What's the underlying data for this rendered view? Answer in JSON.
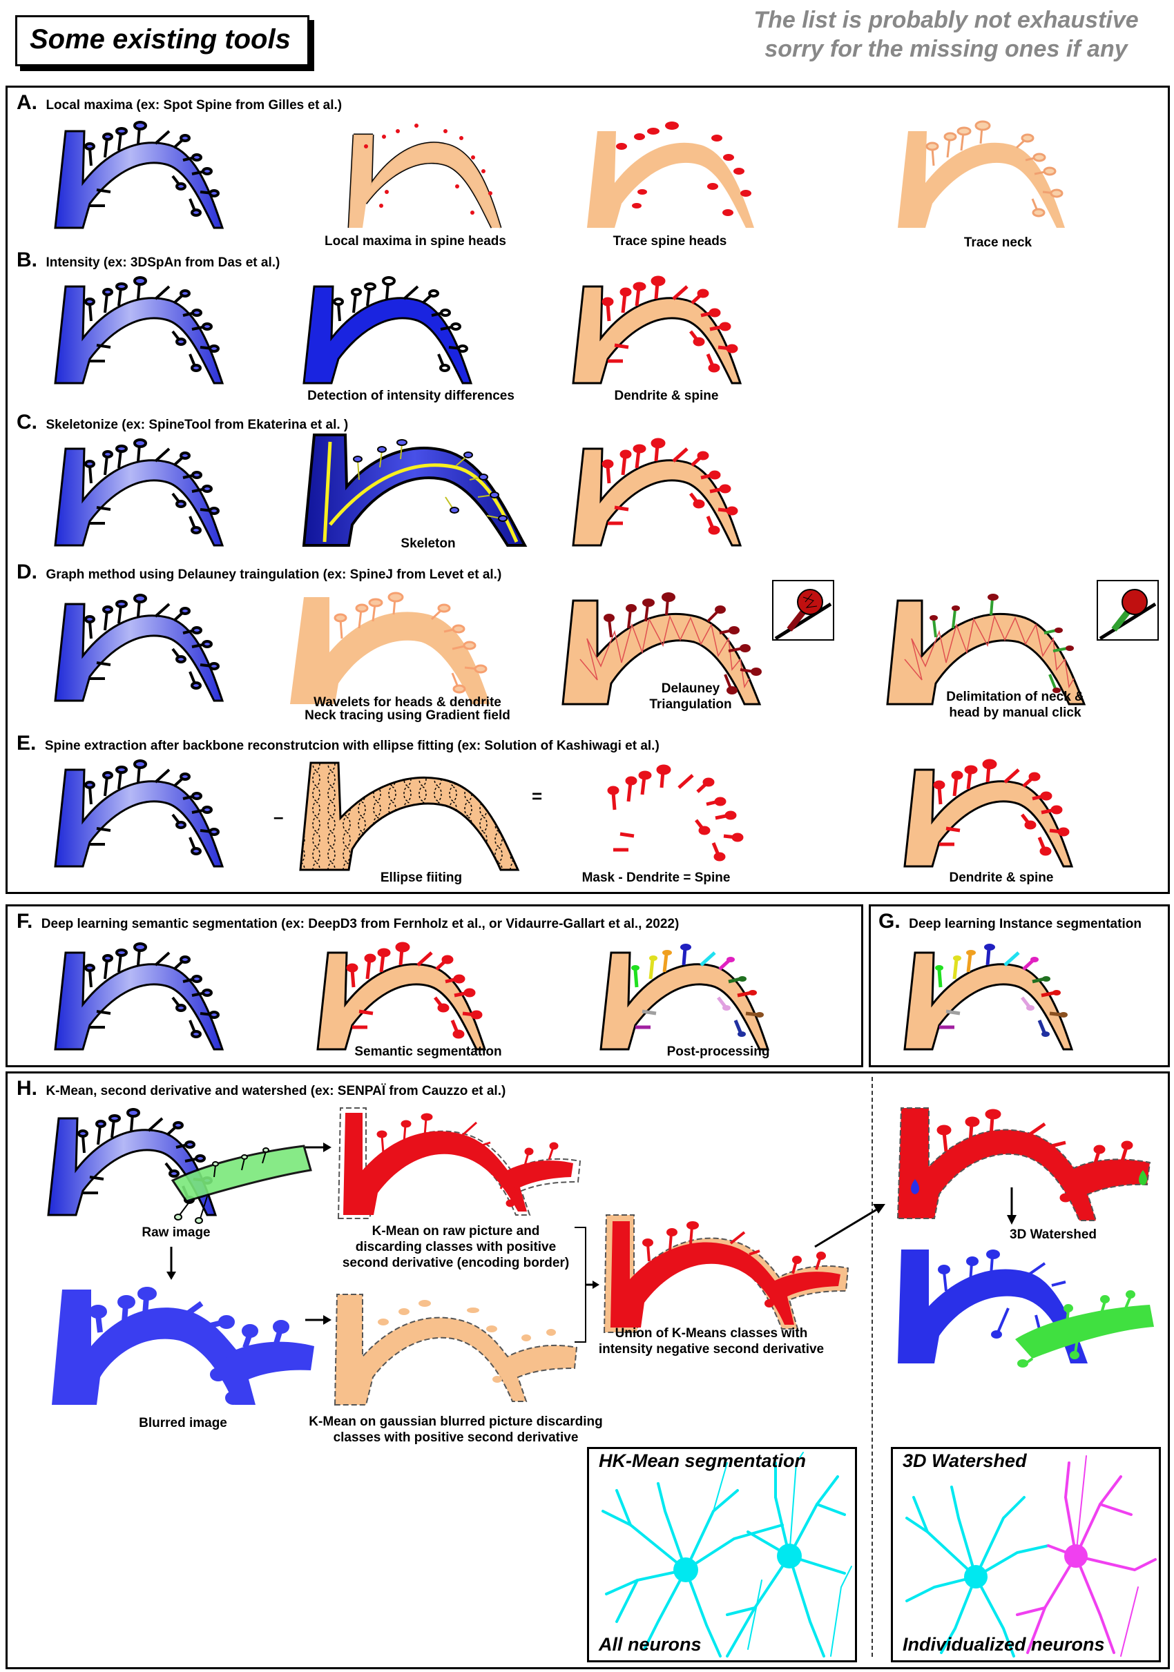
{
  "header": {
    "title": "Some existing tools",
    "disclaimer_line1": "The list is probably not exhaustive",
    "disclaimer_line2": "sorry for the missing ones if any"
  },
  "colors": {
    "raw_blue": "#5a5ef0",
    "deep_blue": "#1a24e0",
    "peach": "#f7c08c",
    "red": "#e8101a",
    "dark_red": "#8b0a12",
    "green": "#50e050",
    "cyan": "#00f0f0",
    "magenta": "#f050f0",
    "yellow": "#f8f020"
  },
  "sections": {
    "A": {
      "letter": "A.",
      "title": "Local maxima (ex:  Spot Spine  from Gilles et al.)",
      "captions": [
        "Local maxima in spine heads",
        "Trace spine heads",
        "Trace neck"
      ]
    },
    "B": {
      "letter": "B.",
      "title": "Intensity (ex:  3DSpAn from Das et al.)",
      "captions": [
        "Detection of intensity differences",
        "Dendrite & spine"
      ]
    },
    "C": {
      "letter": "C.",
      "title": "Skeletonize (ex:  SpineTool from Ekaterina et al. )",
      "captions": [
        "Skeleton"
      ]
    },
    "D": {
      "letter": "D.",
      "title": "Graph method using Delauney traingulation (ex:  SpineJ from Levet et al.)",
      "captions": [
        "Wavelets for heads & dendrite",
        "Neck tracing using Gradient field",
        "Delauney",
        "Triangulation",
        "Delimitation of neck &",
        "head by manual click"
      ]
    },
    "E": {
      "letter": "E.",
      "title": "Spine extraction after backbone reconstrutcion with ellipse fitting (ex:  Solution of Kashiwagi et al.)",
      "minus": "–",
      "equals": "=",
      "captions": [
        "Ellipse fiiting",
        "Mask - Dendrite = Spine",
        "Dendrite & spine"
      ]
    },
    "F": {
      "letter": "F.",
      "title": "Deep learning semantic segmentation (ex: DeepD3 from Fernholz et al., or Vidaurre-Gallart et al., 2022)",
      "captions": [
        "Semantic segmentation",
        "Post-processing"
      ]
    },
    "G": {
      "letter": "G.",
      "title": "Deep learning Instance segmentation"
    },
    "H": {
      "letter": "H.",
      "title": "K-Mean, second derivative and watershed (ex:  SENPAÏ from Cauzzo et al.)",
      "captions": {
        "raw": "Raw image",
        "blurred": "Blurred image",
        "kmean_raw_1": "K-Mean on raw picture and",
        "kmean_raw_2": "discarding classes with positive",
        "kmean_raw_3": "second derivative (encoding border)",
        "kmean_blur_1": "K-Mean on gaussian blurred picture discarding",
        "kmean_blur_2": "classes with positive second derivative",
        "union_1": "Union of K-Means classes with",
        "union_2": "intensity negative second derivative",
        "watershed_step": "3D Watershed"
      },
      "insets": {
        "left_title": "HK-Mean segmentation",
        "left_footer": "All neurons",
        "right_title": "3D Watershed",
        "right_footer": "Individualized neurons"
      }
    }
  }
}
